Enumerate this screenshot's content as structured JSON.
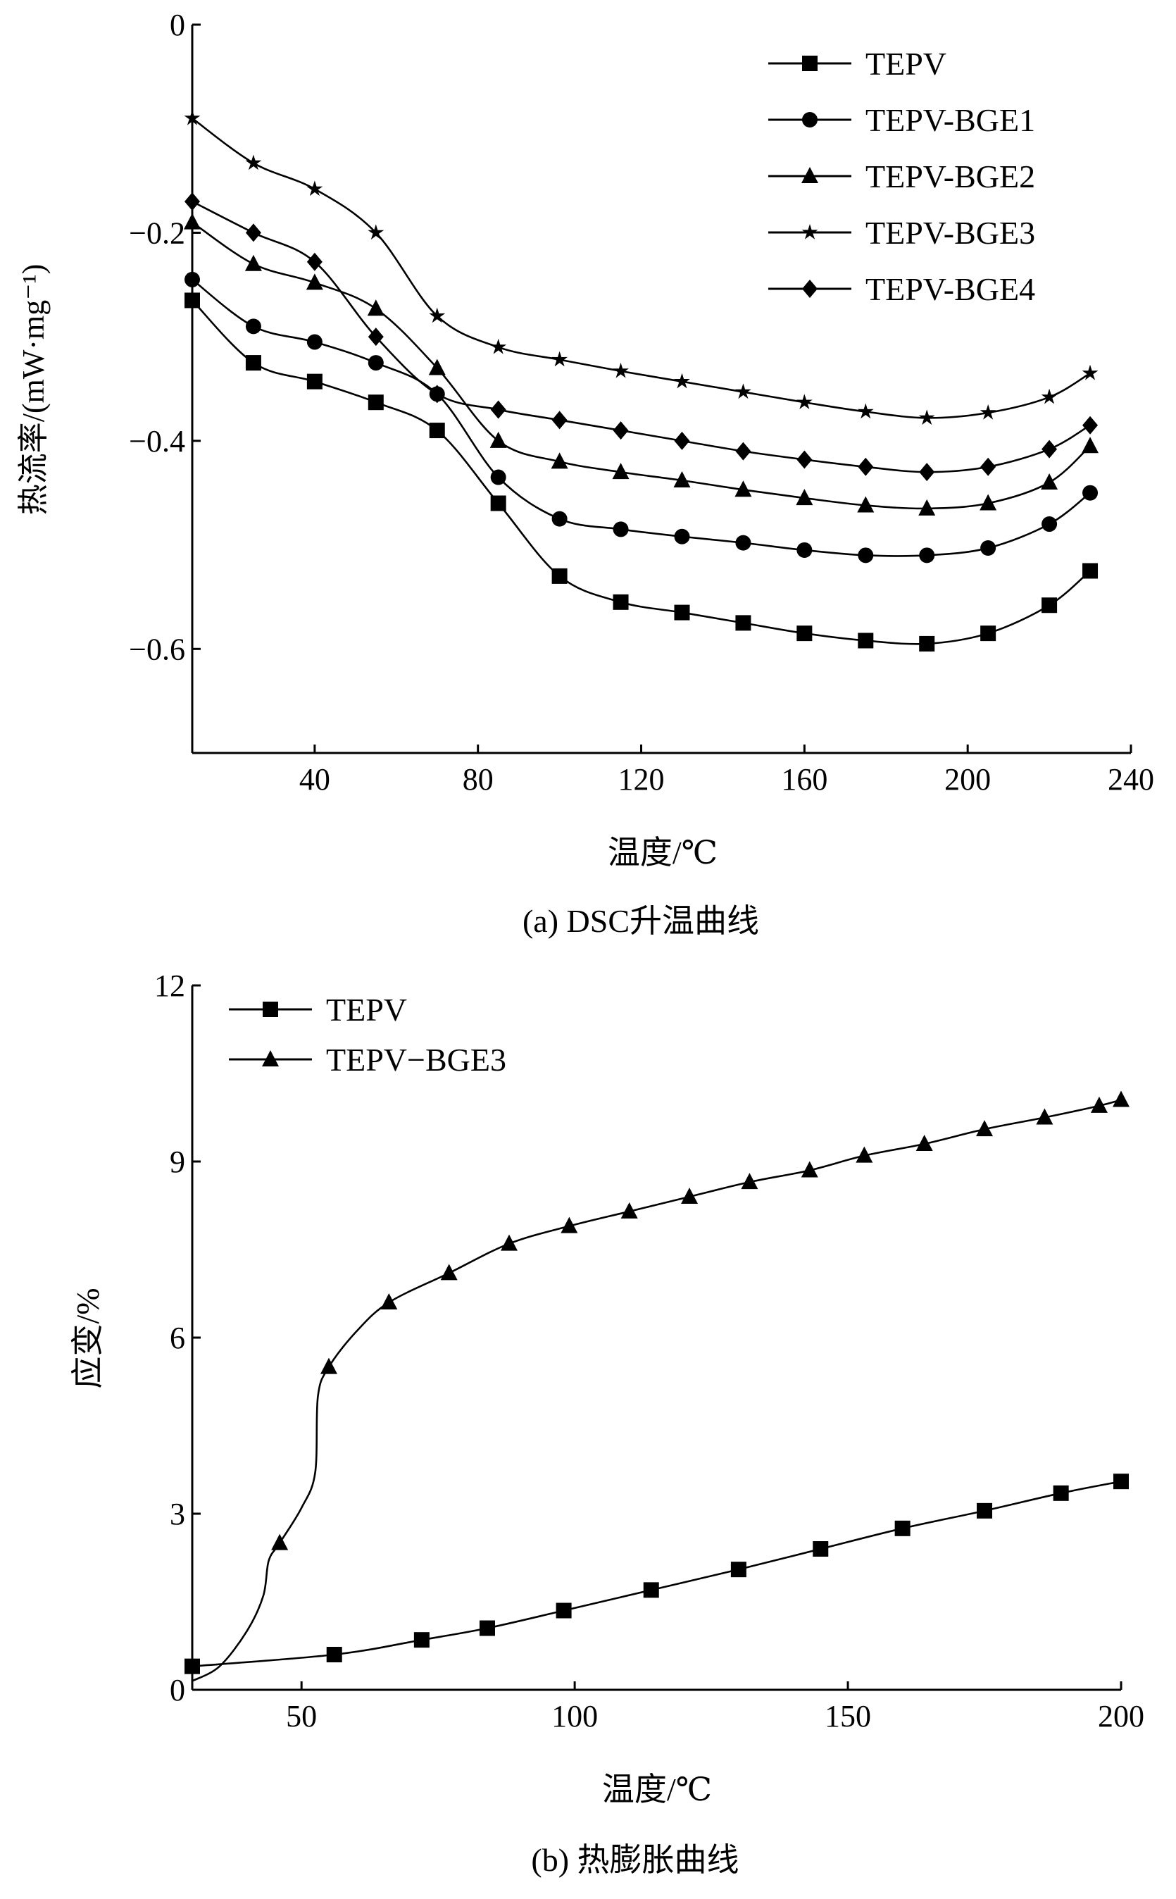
{
  "chart_data": [
    {
      "type": "line",
      "caption": "(a) DSC升温曲线",
      "xlabel": "温度/℃",
      "ylabel": "热流率/(mW·mg⁻¹)",
      "xlim": [
        10,
        240
      ],
      "ylim": [
        -0.7,
        0
      ],
      "xticks": [
        40,
        80,
        120,
        160,
        200,
        240
      ],
      "xtick_labels": [
        "40",
        "80",
        "120",
        "160",
        "200",
        "240"
      ],
      "yticks": [
        0,
        -0.2,
        -0.4,
        -0.6
      ],
      "ytick_labels": [
        "0",
        "−0.2",
        "−0.4",
        "−0.6"
      ],
      "grid": false,
      "legend_position": "top-right",
      "x": [
        10,
        25,
        40,
        55,
        70,
        85,
        100,
        115,
        130,
        145,
        160,
        175,
        190,
        205,
        220,
        230
      ],
      "series": [
        {
          "name": "TEPV",
          "marker": "square",
          "values": [
            -0.265,
            -0.325,
            -0.343,
            -0.363,
            -0.39,
            -0.46,
            -0.53,
            -0.555,
            -0.565,
            -0.575,
            -0.585,
            -0.592,
            -0.595,
            -0.585,
            -0.558,
            -0.525
          ]
        },
        {
          "name": "TEPV-BGE1",
          "marker": "circle",
          "values": [
            -0.245,
            -0.29,
            -0.305,
            -0.325,
            -0.355,
            -0.435,
            -0.475,
            -0.485,
            -0.492,
            -0.498,
            -0.505,
            -0.51,
            -0.51,
            -0.503,
            -0.48,
            -0.45
          ]
        },
        {
          "name": "TEPV-BGE2",
          "marker": "triangle",
          "values": [
            -0.19,
            -0.23,
            -0.248,
            -0.273,
            -0.33,
            -0.4,
            -0.42,
            -0.43,
            -0.438,
            -0.447,
            -0.455,
            -0.462,
            -0.465,
            -0.46,
            -0.44,
            -0.405
          ]
        },
        {
          "name": "TEPV-BGE3",
          "marker": "star",
          "values": [
            -0.09,
            -0.133,
            -0.158,
            -0.2,
            -0.28,
            -0.31,
            -0.322,
            -0.333,
            -0.343,
            -0.353,
            -0.363,
            -0.372,
            -0.378,
            -0.373,
            -0.358,
            -0.335
          ]
        },
        {
          "name": "TEPV-BGE4",
          "marker": "diamond",
          "values": [
            -0.17,
            -0.2,
            -0.228,
            -0.3,
            -0.355,
            -0.37,
            -0.38,
            -0.39,
            -0.4,
            -0.41,
            -0.418,
            -0.425,
            -0.43,
            -0.425,
            -0.408,
            -0.385
          ]
        }
      ]
    },
    {
      "type": "line",
      "caption": "(b) 热膨胀曲线",
      "xlabel": "温度/℃",
      "ylabel": "应变/%",
      "xlim": [
        30,
        200
      ],
      "ylim": [
        0,
        12
      ],
      "xticks": [
        50,
        100,
        150,
        200
      ],
      "xtick_labels": [
        "50",
        "100",
        "150",
        "200"
      ],
      "yticks": [
        0,
        3,
        6,
        9,
        12
      ],
      "ytick_labels": [
        "0",
        "3",
        "6",
        "9",
        "12"
      ],
      "grid": false,
      "legend_position": "top-left",
      "series": [
        {
          "name": "TEPV",
          "marker": "square",
          "x": [
            30,
            56,
            72,
            84,
            98,
            114,
            130,
            145,
            160,
            175,
            189,
            200
          ],
          "values": [
            0.4,
            0.6,
            0.85,
            1.05,
            1.35,
            1.7,
            2.05,
            2.4,
            2.75,
            3.05,
            3.35,
            3.55
          ],
          "marker_x": [
            30,
            56,
            72,
            84,
            98,
            114,
            130,
            145,
            160,
            175,
            189,
            200
          ]
        },
        {
          "name": "TEPV−BGE3",
          "marker": "triangle",
          "x": [
            30,
            35,
            40,
            43,
            44,
            46,
            50,
            52.5,
            53,
            55,
            60,
            66,
            77,
            88,
            99,
            110,
            121,
            132,
            143,
            153,
            164,
            175,
            186,
            196,
            200
          ],
          "values": [
            0.15,
            0.4,
            1.0,
            1.6,
            2.2,
            2.5,
            3.1,
            3.7,
            5.0,
            5.5,
            6.1,
            6.6,
            7.1,
            7.6,
            7.9,
            8.15,
            8.4,
            8.65,
            8.85,
            9.1,
            9.3,
            9.55,
            9.75,
            9.95,
            10.05
          ],
          "marker_x": [
            46,
            55,
            66,
            77,
            88,
            99,
            110,
            121,
            132,
            143,
            153,
            164,
            175,
            186,
            196,
            200
          ]
        }
      ]
    }
  ]
}
